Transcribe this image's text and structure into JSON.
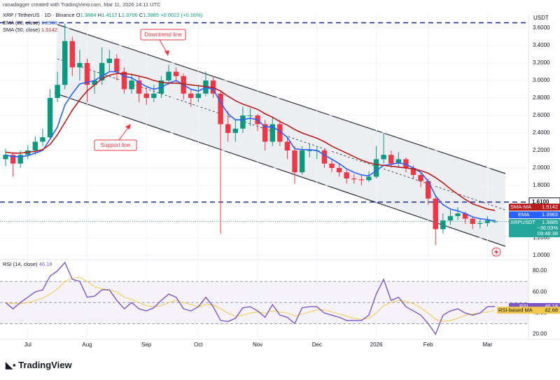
{
  "chart_data": {
    "type": "candlestick",
    "credit": "ranadagger created with TradingView.com, Mar 11, 2026 14:11 UTC",
    "symbol": "XRP / TetherUS · 1D · Binance",
    "ohlc_labels": [
      "O",
      "H",
      "L",
      "C"
    ],
    "change": "+0.0022 (+0.16%)",
    "currency": "USDT",
    "brand": "TradingView",
    "categories": [
      null,
      null,
      null,
      "Jul",
      null,
      null,
      null,
      null,
      null,
      null,
      null,
      "Aug",
      null,
      null,
      null,
      null,
      null,
      null,
      null,
      "Sep",
      null,
      null,
      null,
      null,
      null,
      null,
      "Oct",
      null,
      null,
      null,
      null,
      null,
      null,
      null,
      "Nov",
      null,
      null,
      null,
      null,
      null,
      null,
      null,
      "Dec",
      null,
      null,
      null,
      null,
      null,
      null,
      null,
      "2026",
      null,
      null,
      null,
      null,
      null,
      null,
      "Feb",
      null,
      null,
      null,
      null,
      null,
      null,
      null,
      "Mar",
      null
    ],
    "open": [
      2.1,
      2.15,
      2.05,
      2.15,
      2.2,
      2.3,
      2.35,
      2.8,
      2.95,
      3.45,
      3.15,
      3.2,
      2.95,
      3.0,
      3.2,
      3.25,
      3.1,
      2.9,
      3.0,
      2.85,
      2.8,
      2.85,
      3.0,
      3.1,
      3.05,
      2.85,
      2.8,
      2.85,
      3.0,
      2.85,
      2.5,
      2.4,
      2.45,
      2.6,
      2.6,
      2.5,
      2.3,
      2.5,
      2.3,
      2.2,
      1.95,
      2.2,
      2.2,
      2.2,
      2.05,
      2.0,
      1.95,
      1.88,
      1.87,
      1.86,
      1.9,
      2.1,
      2.15,
      2.05,
      2.1,
      2.0,
      1.92,
      1.85,
      1.65,
      1.3,
      1.4,
      1.45,
      1.48,
      1.42,
      1.36,
      1.37,
      1.3864
    ],
    "high": [
      2.22,
      2.18,
      2.2,
      2.26,
      2.36,
      2.45,
      2.9,
      3.1,
      3.65,
      3.5,
      3.35,
      3.25,
      3.1,
      3.38,
      3.35,
      3.3,
      3.15,
      3.08,
      3.05,
      2.92,
      2.95,
      3.05,
      3.18,
      3.15,
      3.08,
      2.9,
      2.95,
      3.1,
      3.05,
      2.88,
      2.65,
      2.55,
      2.7,
      2.68,
      2.62,
      2.55,
      2.58,
      2.55,
      2.35,
      2.25,
      2.25,
      2.28,
      2.25,
      2.22,
      2.1,
      2.05,
      1.98,
      1.93,
      1.92,
      1.96,
      2.25,
      2.4,
      2.2,
      2.18,
      2.12,
      2.03,
      1.95,
      1.88,
      1.68,
      1.48,
      1.52,
      1.55,
      1.5,
      1.45,
      1.42,
      1.45,
      1.4112
    ],
    "low": [
      2.02,
      1.9,
      2.0,
      2.1,
      2.15,
      2.25,
      2.32,
      2.75,
      2.9,
      3.05,
      3.0,
      2.75,
      2.85,
      2.95,
      3.1,
      3.0,
      2.85,
      2.85,
      2.75,
      2.72,
      2.75,
      2.8,
      2.95,
      2.98,
      2.78,
      2.7,
      2.75,
      2.82,
      2.8,
      1.25,
      2.3,
      2.3,
      2.4,
      2.48,
      2.42,
      2.2,
      2.25,
      2.25,
      2.1,
      1.82,
      1.92,
      2.12,
      2.1,
      2.0,
      1.95,
      1.9,
      1.82,
      1.82,
      1.8,
      1.84,
      1.88,
      2.05,
      2.0,
      2.0,
      1.95,
      1.88,
      1.78,
      1.58,
      1.12,
      1.25,
      1.35,
      1.4,
      1.36,
      1.3,
      1.31,
      1.33,
      1.3706
    ],
    "close": [
      2.15,
      2.05,
      2.15,
      2.2,
      2.3,
      2.35,
      2.8,
      2.95,
      3.45,
      3.15,
      3.2,
      2.95,
      3.0,
      3.2,
      3.25,
      3.1,
      2.9,
      3.0,
      2.85,
      2.8,
      2.85,
      3.0,
      3.1,
      3.05,
      2.85,
      2.8,
      2.85,
      3.0,
      2.85,
      2.5,
      2.4,
      2.45,
      2.6,
      2.6,
      2.5,
      2.3,
      2.5,
      2.3,
      2.2,
      1.95,
      2.2,
      2.2,
      2.2,
      2.05,
      2.0,
      1.95,
      1.88,
      1.87,
      1.86,
      1.9,
      2.1,
      2.15,
      2.05,
      2.1,
      2.0,
      1.92,
      1.85,
      1.65,
      1.3,
      1.4,
      1.45,
      1.48,
      1.42,
      1.36,
      1.37,
      1.4,
      1.3885
    ],
    "up_color": "#089981",
    "down_color": "#f23645",
    "last_tag": {
      "name": "XRPUSDT",
      "change": "−36.03%",
      "countdown": "09:48:38",
      "color": "#26a69a"
    },
    "overlays": [
      {
        "name": "EMA (20, close)",
        "tag": "EMA",
        "color": "#2962ff",
        "values": [
          2.15,
          2.13,
          2.13,
          2.14,
          2.17,
          2.2,
          2.33,
          2.47,
          2.72,
          2.85,
          2.96,
          2.98,
          3.0,
          3.05,
          3.1,
          3.1,
          3.05,
          3.03,
          2.98,
          2.93,
          2.9,
          2.92,
          2.97,
          3.0,
          2.95,
          2.9,
          2.88,
          2.92,
          2.9,
          2.75,
          2.62,
          2.55,
          2.55,
          2.57,
          2.55,
          2.47,
          2.47,
          2.42,
          2.35,
          2.22,
          2.21,
          2.21,
          2.2,
          2.15,
          2.1,
          2.05,
          1.99,
          1.95,
          1.92,
          1.91,
          1.97,
          2.03,
          2.04,
          2.06,
          2.04,
          2.0,
          1.95,
          1.85,
          1.68,
          1.58,
          1.53,
          1.51,
          1.48,
          1.44,
          1.42,
          1.41,
          1.3963
        ]
      },
      {
        "name": "SMA (50, close)",
        "tag": "SMA-MA",
        "color": "#b71c1c",
        "values": [
          2.18,
          2.17,
          2.17,
          2.18,
          2.19,
          2.21,
          2.27,
          2.38,
          2.52,
          2.66,
          2.78,
          2.88,
          2.95,
          3.02,
          3.06,
          3.08,
          3.08,
          3.07,
          3.05,
          3.03,
          3.0,
          2.98,
          2.97,
          2.97,
          2.96,
          2.95,
          2.94,
          2.93,
          2.92,
          2.88,
          2.82,
          2.77,
          2.73,
          2.7,
          2.67,
          2.62,
          2.58,
          2.53,
          2.49,
          2.44,
          2.4,
          2.37,
          2.34,
          2.3,
          2.25,
          2.21,
          2.17,
          2.13,
          2.09,
          2.06,
          2.04,
          2.03,
          2.02,
          2.01,
          2.0,
          1.99,
          1.97,
          1.94,
          1.89,
          1.83,
          1.76,
          1.7,
          1.64,
          1.59,
          1.56,
          1.53,
          1.5142
        ]
      }
    ],
    "levels": [
      3.66,
      {
        "value": 1.61,
        "label": "1.6100"
      }
    ],
    "annotations": [
      "Downtrend line",
      "Support line"
    ],
    "ylim": [
      0.96,
      3.696
    ],
    "yticks": [
      {
        "value": 3.6,
        "label": "3.6000"
      },
      {
        "value": 3.4,
        "label": "3.4000"
      },
      {
        "value": 3.2,
        "label": "3.2000"
      },
      {
        "value": 3.0,
        "label": "3.0000"
      },
      {
        "value": 2.8,
        "label": "2.8000"
      },
      {
        "value": 2.6,
        "label": "2.6000"
      },
      {
        "value": 2.4,
        "label": "2.4000"
      },
      {
        "value": 2.2,
        "label": "2.2000"
      },
      {
        "value": 2.0,
        "label": "2.0000"
      },
      {
        "value": 1.8,
        "label": "1.8000"
      },
      {
        "value": 1.2,
        "label": "1.2000"
      },
      {
        "value": 1.0,
        "label": "1.0000"
      }
    ],
    "rsi": {
      "name": "RSI (14, close)",
      "tag": "RSI",
      "color": "#7e57c2",
      "values": [
        50,
        44,
        50,
        55,
        60,
        62,
        75,
        80,
        88,
        72,
        70,
        55,
        56,
        62,
        62,
        52,
        44,
        50,
        44,
        42,
        45,
        52,
        58,
        55,
        44,
        42,
        46,
        55,
        46,
        33,
        32,
        35,
        45,
        46,
        42,
        36,
        48,
        38,
        36,
        30,
        45,
        46,
        46,
        40,
        38,
        36,
        33,
        33,
        33,
        38,
        58,
        72,
        52,
        55,
        46,
        42,
        38,
        30,
        20,
        38,
        42,
        44,
        40,
        38,
        40,
        46,
        46.18
      ],
      "ma": {
        "name": "RSI-based MA",
        "color": "#f2c94c",
        "values": [
          50,
          49,
          49,
          50,
          52,
          54,
          58,
          63,
          70,
          73,
          74,
          70,
          65,
          63,
          62,
          60,
          55,
          53,
          50,
          47,
          46,
          47,
          50,
          52,
          50,
          48,
          46,
          48,
          48,
          44,
          40,
          37,
          38,
          40,
          41,
          40,
          42,
          41,
          40,
          37,
          39,
          41,
          43,
          43,
          41,
          39,
          37,
          35,
          34,
          35,
          40,
          47,
          50,
          52,
          51,
          49,
          45,
          40,
          34,
          32,
          33,
          35,
          38,
          39,
          40,
          41,
          42.68
        ]
      },
      "ylim": [
        15,
        90
      ],
      "yticks": [
        {
          "value": 80,
          "label": "80.00"
        },
        {
          "value": 60,
          "label": "60.00"
        },
        {
          "value": 40,
          "label": "40.00"
        },
        {
          "value": 20,
          "label": "20.00"
        }
      ],
      "levels": [
        70,
        50,
        30
      ]
    }
  }
}
